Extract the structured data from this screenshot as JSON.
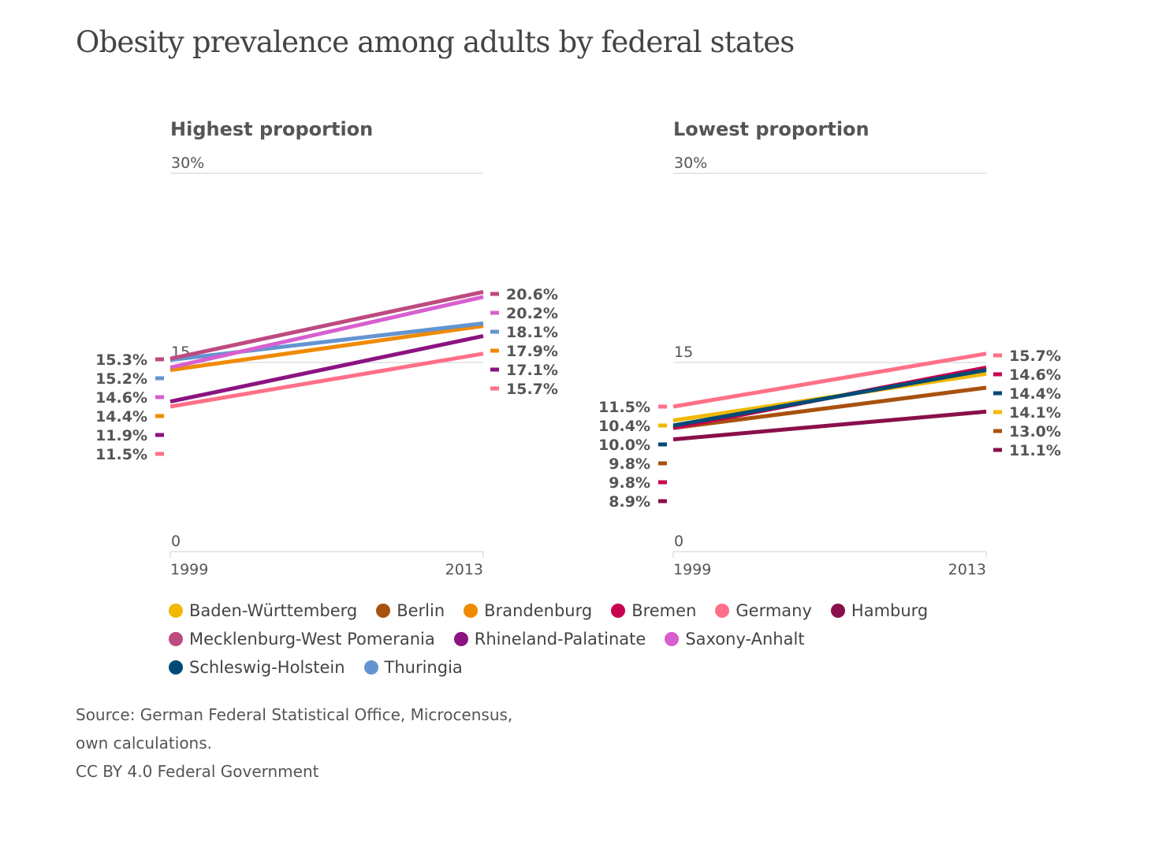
{
  "title": "Obesity prevalence among adults by federal states",
  "chart_data": [
    {
      "type": "line",
      "title": "Highest proportion",
      "x": [
        "1999",
        "2013"
      ],
      "ylim": [
        0,
        30
      ],
      "yticks": [
        {
          "value": 30,
          "label": "30%"
        },
        {
          "value": 15,
          "label": "15"
        },
        {
          "value": 0,
          "label": "0"
        }
      ],
      "start_labels": [
        {
          "series": "Mecklenburg-West Pomerania",
          "label": "15.3%"
        },
        {
          "series": "Thuringia",
          "label": "15.2%"
        },
        {
          "series": "Saxony-Anhalt",
          "label": "14.6%"
        },
        {
          "series": "Brandenburg",
          "label": "14.4%"
        },
        {
          "series": "Rhineland-Palatinate",
          "label": "11.9%"
        },
        {
          "series": "Germany",
          "label": "11.5%"
        }
      ],
      "end_labels": [
        {
          "series": "Mecklenburg-West Pomerania",
          "label": "20.6%"
        },
        {
          "series": "Saxony-Anhalt",
          "label": "20.2%"
        },
        {
          "series": "Thuringia",
          "label": "18.1%"
        },
        {
          "series": "Brandenburg",
          "label": "17.9%"
        },
        {
          "series": "Rhineland-Palatinate",
          "label": "17.1%"
        },
        {
          "series": "Germany",
          "label": "15.7%"
        }
      ],
      "series": [
        {
          "name": "Germany",
          "values": [
            11.5,
            15.7
          ]
        },
        {
          "name": "Rhineland-Palatinate",
          "values": [
            11.9,
            17.1
          ]
        },
        {
          "name": "Brandenburg",
          "values": [
            14.4,
            17.9
          ]
        },
        {
          "name": "Thuringia",
          "values": [
            15.2,
            18.1
          ]
        },
        {
          "name": "Saxony-Anhalt",
          "values": [
            14.6,
            20.2
          ]
        },
        {
          "name": "Mecklenburg-West Pomerania",
          "values": [
            15.3,
            20.6
          ]
        }
      ]
    },
    {
      "type": "line",
      "title": "Lowest proportion",
      "x": [
        "1999",
        "2013"
      ],
      "ylim": [
        0,
        30
      ],
      "yticks": [
        {
          "value": 30,
          "label": "30%"
        },
        {
          "value": 15,
          "label": "15"
        },
        {
          "value": 0,
          "label": "0"
        }
      ],
      "start_labels": [
        {
          "series": "Germany",
          "label": "11.5%"
        },
        {
          "series": "Baden-Württemberg",
          "label": "10.4%"
        },
        {
          "series": "Schleswig-Holstein",
          "label": "10.0%"
        },
        {
          "series": "Berlin",
          "label": "9.8%"
        },
        {
          "series": "Bremen",
          "label": "9.8%"
        },
        {
          "series": "Hamburg",
          "label": "8.9%"
        }
      ],
      "end_labels": [
        {
          "series": "Germany",
          "label": "15.7%"
        },
        {
          "series": "Bremen",
          "label": "14.6%"
        },
        {
          "series": "Schleswig-Holstein",
          "label": "14.4%"
        },
        {
          "series": "Baden-Württemberg",
          "label": "14.1%"
        },
        {
          "series": "Berlin",
          "label": "13.0%"
        },
        {
          "series": "Hamburg",
          "label": "11.1%"
        }
      ],
      "series": [
        {
          "name": "Hamburg",
          "values": [
            8.9,
            11.1
          ]
        },
        {
          "name": "Berlin",
          "values": [
            9.8,
            13.0
          ]
        },
        {
          "name": "Bremen",
          "values": [
            9.8,
            14.6
          ]
        },
        {
          "name": "Baden-Württemberg",
          "values": [
            10.4,
            14.1
          ]
        },
        {
          "name": "Schleswig-Holstein",
          "values": [
            10.0,
            14.4
          ]
        },
        {
          "name": "Germany",
          "values": [
            11.5,
            15.7
          ]
        }
      ]
    }
  ],
  "legend": [
    {
      "name": "Baden-Württemberg",
      "color": "#f1b800"
    },
    {
      "name": "Berlin",
      "color": "#a8510e"
    },
    {
      "name": "Brandenburg",
      "color": "#f08a00"
    },
    {
      "name": "Bremen",
      "color": "#c8004e"
    },
    {
      "name": "Germany",
      "color": "#ff7088"
    },
    {
      "name": "Hamburg",
      "color": "#8a0f4b"
    },
    {
      "name": "Mecklenburg-West Pomerania",
      "color": "#bd4a80"
    },
    {
      "name": "Rhineland-Palatinate",
      "color": "#8b1381"
    },
    {
      "name": "Saxony-Anhalt",
      "color": "#d85fcf"
    },
    {
      "name": "Schleswig-Holstein",
      "color": "#004b76"
    },
    {
      "name": "Thuringia",
      "color": "#6394d1"
    }
  ],
  "source": {
    "lines": [
      "Source: German Federal Statistical Office, Microcensus,",
      "own calculations.",
      "CC BY 4.0 Federal Government"
    ]
  }
}
